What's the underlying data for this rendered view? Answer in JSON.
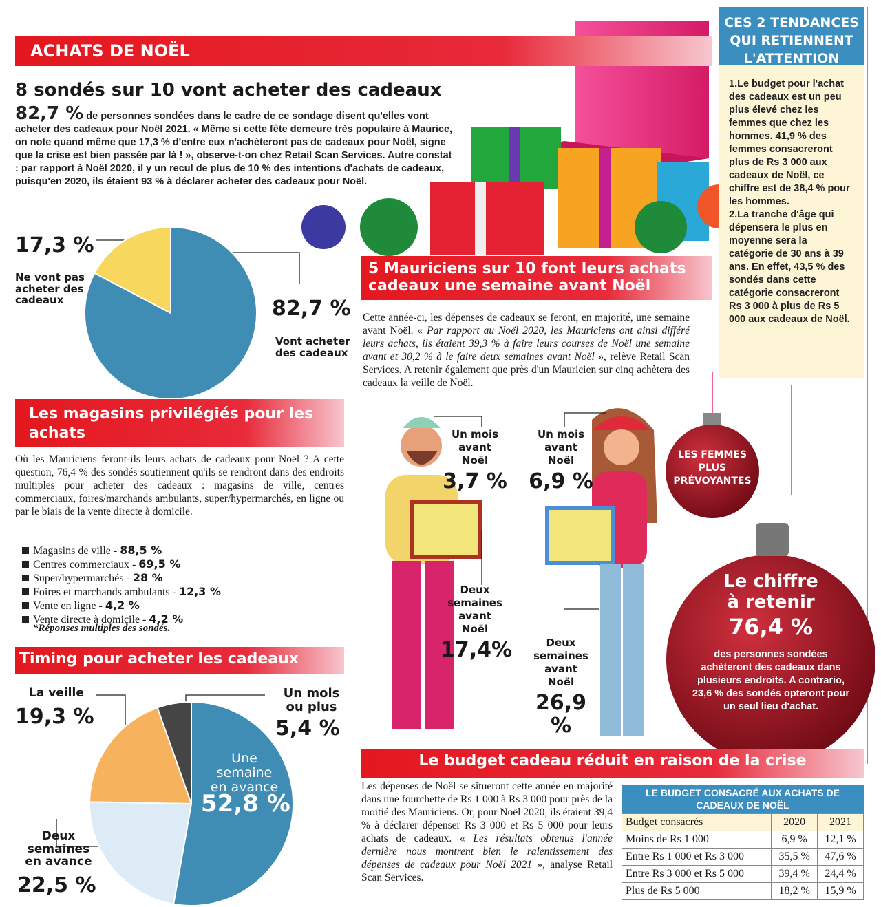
{
  "header": {
    "banner": "ACHATS DE NOËL",
    "title": "8 sondés sur 10 vont acheter des cadeaux",
    "lead": "82,7 %",
    "intro": "de personnes sondées dans le cadre de ce sondage disent qu'elles vont acheter des cadeaux pour Noël 2021. « Même si cette fête demeure très populaire à Maurice, on note quand même que 17,3 % d'entre eux n'achèteront pas de cadeaux pour Noël, signe que la crise est bien passée par là ! », observe-t-on chez Retail Scan Services. Autre constat : par rapport à Noël 2020, il y un recul de plus de 10 % des intentions d'achats de cadeaux, puisqu'en 2020, ils étaient 93 % à déclarer acheter des cadeaux pour Noël."
  },
  "chart_data": [
    {
      "type": "pie",
      "categories": [
        "Vont acheter des cadeaux",
        "Ne vont pas acheter des cadeaux"
      ],
      "values": [
        82.7,
        17.3
      ],
      "value_labels": [
        "82,7 %",
        "17,3 %"
      ],
      "colors": [
        "#3f8db4",
        "#f8d75e"
      ]
    },
    {
      "type": "pie",
      "title": "Timing pour acheter les cadeaux",
      "categories": [
        "Une semaine en avance",
        "Deux semaines en avance",
        "La veille",
        "Un mois ou plus"
      ],
      "values": [
        52.8,
        22.5,
        19.3,
        5.4
      ],
      "value_labels": [
        "52,8 %",
        "22,5 %",
        "19,3 %",
        "5,4 %"
      ],
      "colors": [
        "#3f8db4",
        "#dcebf5",
        "#f6b25c",
        "#454545"
      ]
    }
  ],
  "stores": {
    "title": "Les magasins privilégiés pour les achats",
    "text": "Où les Mauriciens feront-ils leurs achats de cadeaux pour Noël ? A cette question, 76,4 % des sondés soutiennent qu'ils se rendront dans des endroits multiples pour acheter des cadeaux : magasins de ville, centres commerciaux, foires/marchands ambulants, super/hypermarchés, en ligne ou par le biais de la vente directe à domicile.",
    "items": [
      {
        "label": "Magasins de ville -",
        "value": "88,5 %"
      },
      {
        "label": "Centres commerciaux -",
        "value": "69,5 %"
      },
      {
        "label": "Super/hypermarchés -",
        "value": "28 %"
      },
      {
        "label": "Foires et marchands ambulants -",
        "value": "12,3 %"
      },
      {
        "label": "Vente en ligne -",
        "value": "4,2 %"
      },
      {
        "label": "Vente directe à domicile -",
        "value": "4,2 %"
      }
    ],
    "note": "*Réponses multiples des sondés."
  },
  "week": {
    "title": "5 Mauriciens sur 10 font leurs achats cadeaux une semaine avant Noël",
    "text_start": "Cette année-ci, les dépenses de cadeaux se feront, en majorité, une semaine avant Noël. «",
    "quote": "Par rapport au Noël 2020, les Mauriciens ont ainsi différé leurs achats, ils étaient 39,3 % à faire leurs courses de Noël une semaine avant et 30,2 % à le faire deux semaines avant Noël",
    "text_end": "», relève Retail Scan Services. A retenir également que près d'un Mauricien sur cinq achètera des cadeaux la veille de Noël.",
    "men": [
      {
        "label": "Un mois avant Noël",
        "value": "3,7 %"
      },
      {
        "label": "Deux semaines avant Noël",
        "value": "17,4%"
      }
    ],
    "women": [
      {
        "label": "Un mois avant Noël",
        "value": "6,9 %"
      },
      {
        "label": "Deux semaines avant Noël",
        "value": "26,9 %"
      }
    ],
    "ornament": "LES FEMMES PLUS PRÉVOYANTES"
  },
  "sidebar": {
    "title": "CES 2 TENDANCES QUI RETIENNENT L'ATTENTION",
    "items": [
      "1.Le budget pour l'achat des cadeaux est un peu plus élevé chez les femmes que chez les hommes. 41,9 % des femmes consacreront plus de Rs 3 000 aux cadeaux de Noël, ce chiffre est de 38,4 % pour les hommes.",
      "2.La tranche d'âge qui dépensera le plus en moyenne sera la catégorie de 30 ans à 39 ans. En effet, 43,5 % des sondés dans cette catégorie consacreront Rs 3 000 à plus de Rs 5 000 aux cadeaux de Noël."
    ]
  },
  "key_figure": {
    "title": "Le chiffre à retenir",
    "value": "76,4 %",
    "text": "des personnes sondées achèteront des cadeaux dans plusieurs endroits. A contrario, 23,6 % des sondés opteront pour un seul lieu d'achat."
  },
  "budget": {
    "title": "Le budget cadeau réduit en raison de la crise",
    "text_start": "Les dépenses de Noël se situeront cette année en majorité dans une fourchette de Rs 1 000 à Rs 3 000 pour près de la moitié des Mauriciens. Or, pour Noël 2020, ils étaient 39,4 % à déclarer dépenser Rs 3 000 et Rs 5 000 pour leurs achats de cadeaux. «",
    "quote": "Les résultats obtenus l'année dernière nous montrent bien le ralentissement des dépenses de cadeaux pour Noël 2021",
    "text_end": "», analyse Retail Scan Services.",
    "table": {
      "title": "LE BUDGET CONSACRÉ AUX ACHATS DE CADEAUX DE NOËL",
      "header": [
        "Budget consacrés",
        "2020",
        "2021"
      ],
      "rows": [
        [
          "Moins de Rs 1 000",
          "6,9 %",
          "12,1 %"
        ],
        [
          "Entre Rs 1 000 et Rs 3 000",
          "35,5 %",
          "47,6 %"
        ],
        [
          "Entre Rs 3 000 et Rs 5 000",
          "39,4 %",
          "24,4 %"
        ],
        [
          "Plus de Rs 5 000",
          "18,2 %",
          "15,9 %"
        ]
      ]
    }
  }
}
